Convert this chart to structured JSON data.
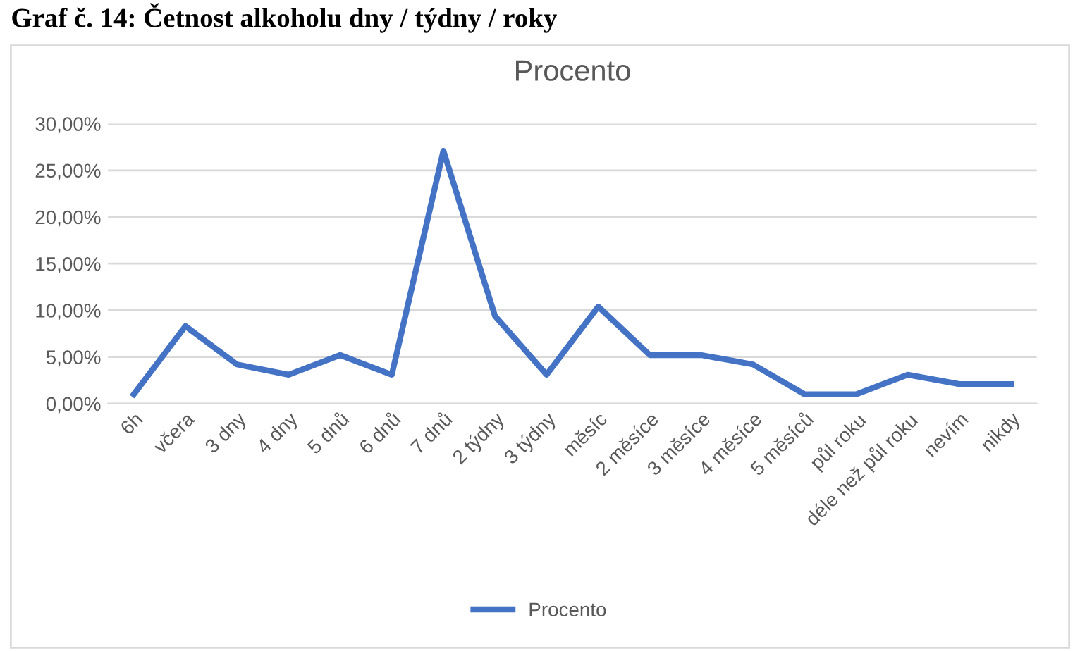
{
  "chart_data": {
    "type": "line",
    "title": "Procento",
    "annotations": [
      "Graf č. 14: Četnost alkoholu dny / týdny / roky"
    ],
    "categories": [
      "6h",
      "včera",
      "3 dny",
      "4 dny",
      "5 dnů",
      "6 dnů",
      "7 dnů",
      "2 týdny",
      "3 týdny",
      "měsíc",
      "2 měsíce",
      "3 měsíce",
      "4 měsíce",
      "5 měsíců",
      "půl roku",
      "déle než půl roku",
      "nevím",
      "nikdy"
    ],
    "series": [
      {
        "name": "Procento",
        "color": "#4472c4",
        "values": [
          1.0,
          8.3,
          4.2,
          3.1,
          5.2,
          3.1,
          27.1,
          9.4,
          3.1,
          10.4,
          5.2,
          5.2,
          4.2,
          1.0,
          1.0,
          3.1,
          2.1,
          2.1
        ]
      }
    ],
    "ylim": [
      0,
      30
    ],
    "yticks": [
      {
        "value": 0,
        "label": "0,00%"
      },
      {
        "value": 5,
        "label": "5,00%"
      },
      {
        "value": 10,
        "label": "10,00%"
      },
      {
        "value": 15,
        "label": "15,00%"
      },
      {
        "value": 20,
        "label": "20,00%"
      },
      {
        "value": 25,
        "label": "25,00%"
      },
      {
        "value": 30,
        "label": "30,00%"
      }
    ],
    "grid": "y",
    "legend": "bottom",
    "marker": "none",
    "line_style": "solid"
  }
}
